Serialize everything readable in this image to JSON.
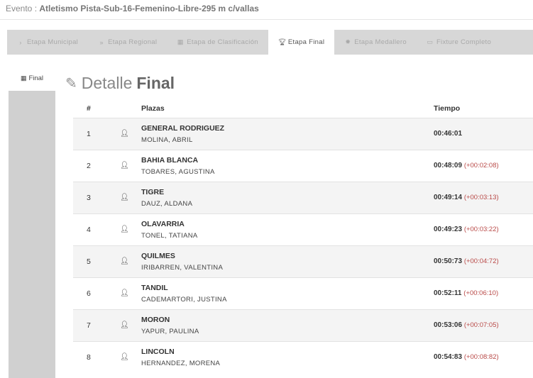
{
  "event": {
    "prefix": "Evento :",
    "name": "Atletismo Pista-Sub-16-Femenino-Libre-295 m c/vallas"
  },
  "tabs": [
    {
      "icon": "›",
      "label": "Etapa Municipal",
      "active": false
    },
    {
      "icon": "»",
      "label": "Etapa Regional",
      "active": false
    },
    {
      "icon": "▦",
      "label": "Etapa de Clasificación",
      "active": false
    },
    {
      "icon": "🏆︎",
      "label": "Etapa Final",
      "active": true
    },
    {
      "icon": "✹",
      "label": "Etapa Medallero",
      "active": false
    },
    {
      "icon": "▭",
      "label": "Fixture Completo",
      "active": false
    }
  ],
  "sidebar": {
    "tab_label": "Final"
  },
  "title": {
    "light": "Detalle",
    "bold": "Final"
  },
  "table": {
    "headers": {
      "num": "#",
      "plazas": "Plazas",
      "tiempo": "Tiempo"
    },
    "rows": [
      {
        "num": "1",
        "club": "GENERAL RODRIGUEZ",
        "athlete": "MOLINA, ABRIL",
        "time": "00:46:01",
        "diff": ""
      },
      {
        "num": "2",
        "club": "BAHIA BLANCA",
        "athlete": "TOBARES, AGUSTINA",
        "time": "00:48:09",
        "diff": "(+00:02:08)"
      },
      {
        "num": "3",
        "club": "TIGRE",
        "athlete": "DAUZ, ALDANA",
        "time": "00:49:14",
        "diff": "(+00:03:13)"
      },
      {
        "num": "4",
        "club": "OLAVARRIA",
        "athlete": "TONEL, TATIANA",
        "time": "00:49:23",
        "diff": "(+00:03:22)"
      },
      {
        "num": "5",
        "club": "QUILMES",
        "athlete": "IRIBARREN, VALENTINA",
        "time": "00:50:73",
        "diff": "(+00:04:72)"
      },
      {
        "num": "6",
        "club": "TANDIL",
        "athlete": "CADEMARTORI, JUSTINA",
        "time": "00:52:11",
        "diff": "(+00:06:10)"
      },
      {
        "num": "7",
        "club": "MORON",
        "athlete": "YAPUR, PAULINA",
        "time": "00:53:06",
        "diff": "(+00:07:05)"
      },
      {
        "num": "8",
        "club": "LINCOLN",
        "athlete": "HERNANDEZ, MORENA",
        "time": "00:54:83",
        "diff": "(+00:08:82)"
      }
    ]
  }
}
